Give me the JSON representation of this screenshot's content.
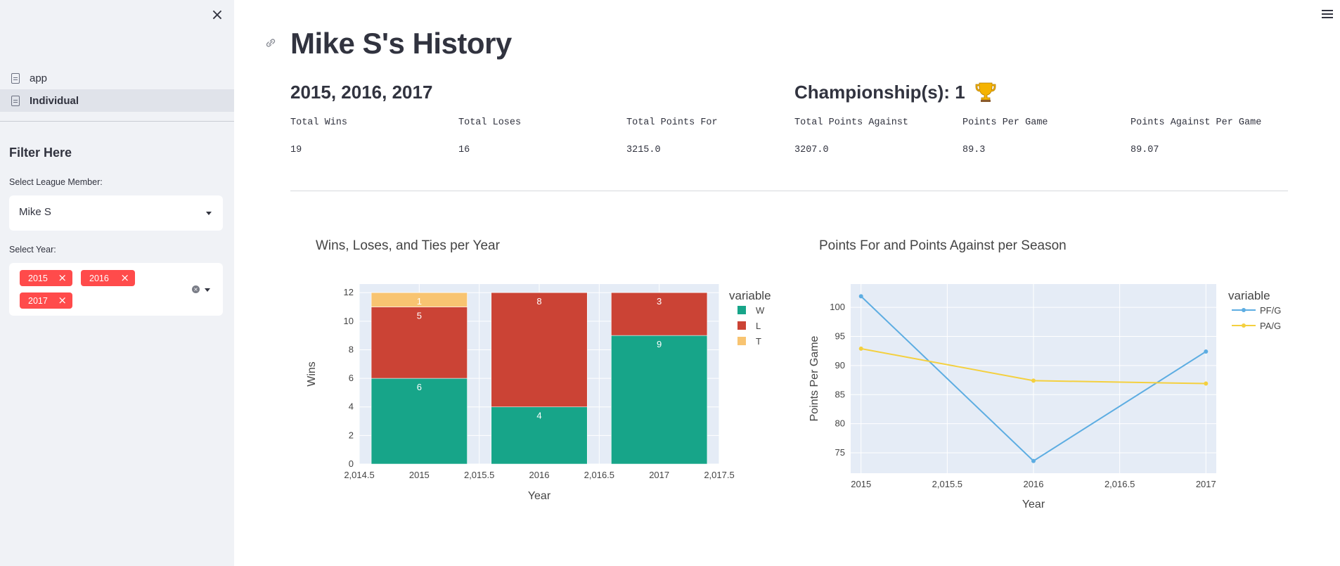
{
  "sidebar": {
    "close_label": "×",
    "nav_items": [
      {
        "label": "app",
        "active": false
      },
      {
        "label": "Individual",
        "active": true
      }
    ],
    "filter_title": "Filter Here",
    "league_member": {
      "label": "Select League Member:",
      "value": "Mike S"
    },
    "year": {
      "label": "Select Year:",
      "tags": [
        "2015",
        "2016",
        "2017"
      ]
    }
  },
  "main": {
    "title": "Mike S's History",
    "years_heading": "2015, 2016, 2017",
    "championship_heading": "Championship(s): 1",
    "metrics": [
      {
        "label": "Total Wins",
        "value": "19"
      },
      {
        "label": "Total Loses",
        "value": "16"
      },
      {
        "label": "Total Points For",
        "value": "3215.0"
      },
      {
        "label": "Total Points Against",
        "value": "3207.0"
      },
      {
        "label": "Points Per Game",
        "value": "89.3"
      },
      {
        "label": "Points Against Per Game",
        "value": "89.07"
      }
    ]
  },
  "colors": {
    "accent": "#ff4b4b",
    "sidebar_bg": "#f0f2f6",
    "plot_bg": "#e5ecf6",
    "win": "#17a589",
    "loss": "#cb4335",
    "tie": "#f8c471",
    "pf": "#5dade2",
    "pa": "#f4d03f"
  },
  "chart_data": [
    {
      "type": "bar",
      "stacked": true,
      "title": "Wins, Loses, and Ties per Year",
      "xlabel": "Year",
      "ylabel": "Wins",
      "legend_title": "variable",
      "legend_position": "right",
      "x": [
        2015,
        2016,
        2017
      ],
      "x_ticks": [
        "2,014.5",
        "2015",
        "2,015.5",
        "2016",
        "2,016.5",
        "2017",
        "2,017.5"
      ],
      "y_ticks": [
        "0",
        "2",
        "4",
        "6",
        "8",
        "10",
        "12"
      ],
      "xlim": [
        2014.5,
        2017.5
      ],
      "ylim": [
        0,
        12.6
      ],
      "grid": true,
      "series": [
        {
          "name": "W",
          "values": [
            6,
            4,
            9
          ],
          "labels": [
            "6",
            "4",
            "9"
          ]
        },
        {
          "name": "L",
          "values": [
            5,
            8,
            3
          ],
          "labels": [
            "5",
            "8",
            "3"
          ]
        },
        {
          "name": "T",
          "values": [
            1,
            0,
            0
          ],
          "labels": [
            "1",
            "",
            ""
          ]
        }
      ]
    },
    {
      "type": "line",
      "title": "Points For and Points Against per Season",
      "xlabel": "Year",
      "ylabel": "Points Per Game",
      "legend_title": "variable",
      "legend_position": "right",
      "x": [
        2015,
        2016,
        2017
      ],
      "x_ticks": [
        "2015",
        "2,015.5",
        "2016",
        "2,016.5",
        "2017"
      ],
      "y_ticks": [
        "75",
        "80",
        "85",
        "90",
        "95",
        "100"
      ],
      "xlim": [
        2014.94,
        2017.06
      ],
      "ylim": [
        71.5,
        104.0
      ],
      "grid": true,
      "series": [
        {
          "name": "PF/G",
          "values": [
            101.9,
            73.6,
            92.4
          ]
        },
        {
          "name": "PA/G",
          "values": [
            92.9,
            87.4,
            86.9
          ]
        }
      ]
    }
  ]
}
